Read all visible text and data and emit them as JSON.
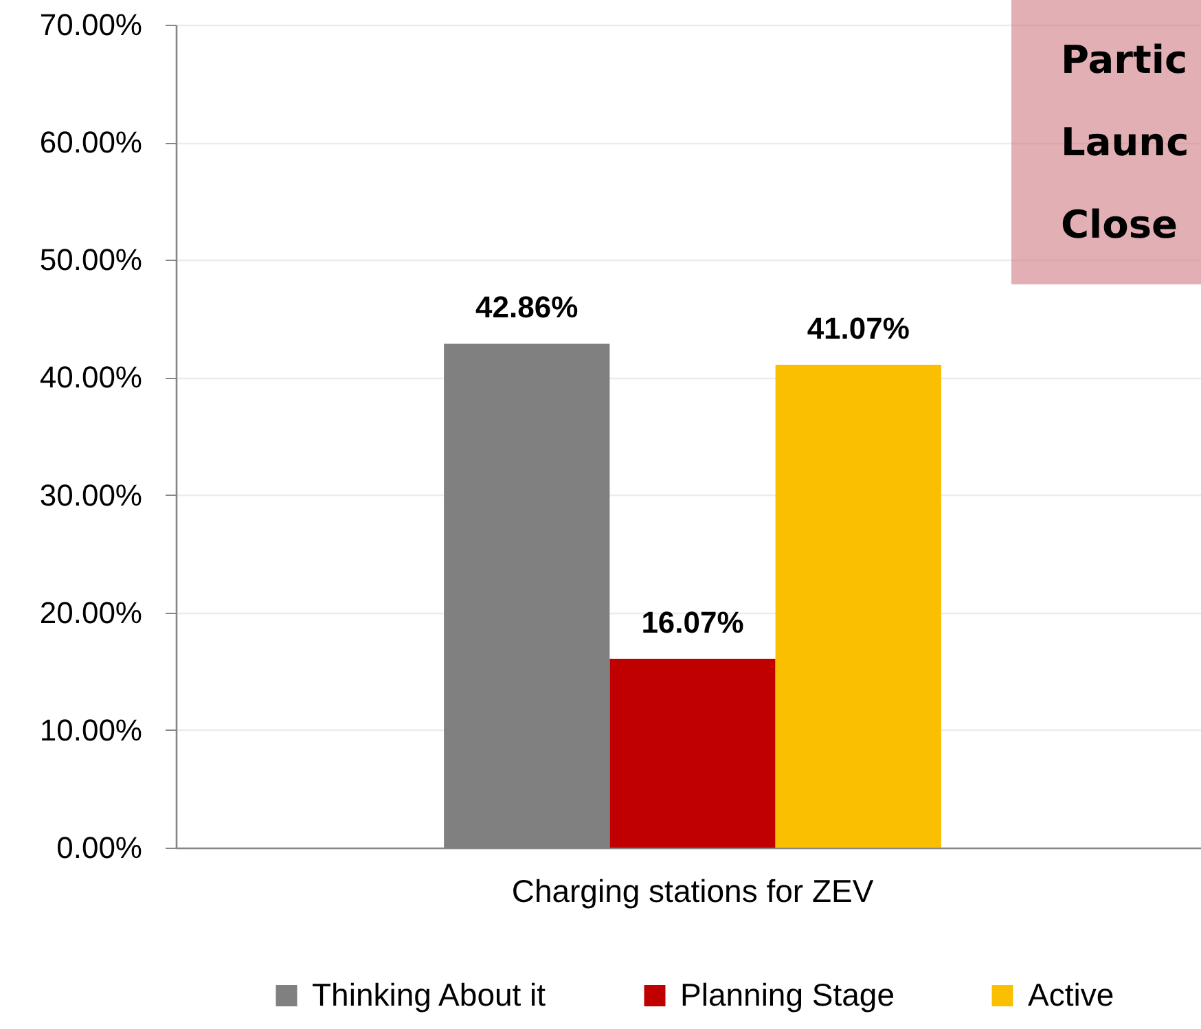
{
  "chart_data": {
    "type": "bar",
    "categories": [
      "Charging stations for ZEV"
    ],
    "series": [
      {
        "name": "Thinking About it",
        "color": "#808080",
        "values": [
          42.86
        ],
        "value_labels": [
          "42.86%"
        ]
      },
      {
        "name": "Planning Stage",
        "color": "#c00000",
        "values": [
          16.07
        ],
        "value_labels": [
          "16.07%"
        ]
      },
      {
        "name": "Active",
        "color": "#f9bf00",
        "values": [
          41.07
        ],
        "value_labels": [
          "41.07%"
        ]
      }
    ],
    "ylim": [
      0,
      70
    ],
    "yticks": [
      {
        "value": 0,
        "label": "0.00%"
      },
      {
        "value": 10,
        "label": "10.00%"
      },
      {
        "value": 20,
        "label": "20.00%"
      },
      {
        "value": 30,
        "label": "30.00%"
      },
      {
        "value": 40,
        "label": "40.00%"
      },
      {
        "value": 50,
        "label": "50.00%"
      },
      {
        "value": 60,
        "label": "60.00%"
      },
      {
        "value": 70,
        "label": "70.00%"
      }
    ],
    "grid": "y",
    "legend": "bottom",
    "annotations": [
      "Partic",
      "Launc",
      "Close"
    ]
  }
}
